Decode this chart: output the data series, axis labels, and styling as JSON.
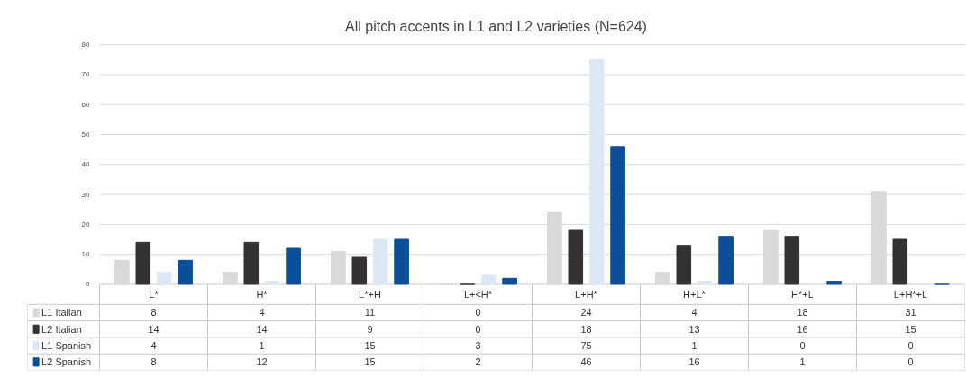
{
  "chart_data": {
    "type": "bar",
    "title": "All pitch accents in L1 and L2 varieties (N=624)",
    "categories": [
      "L*",
      "H*",
      "L*+H",
      "L+<H*",
      "L+H*",
      "H+L*",
      "H*+L",
      "L+H*+L"
    ],
    "series": [
      {
        "name": "L1 Italian",
        "color": "#d9d9d9",
        "values": [
          8,
          4,
          11,
          0,
          24,
          4,
          18,
          31
        ]
      },
      {
        "name": "L2 Italian",
        "color": "#333333",
        "values": [
          14,
          14,
          9,
          0,
          18,
          13,
          16,
          15
        ]
      },
      {
        "name": "L1 Spanish",
        "color": "#dce8f6",
        "values": [
          4,
          1,
          15,
          3,
          75,
          1,
          0,
          0
        ]
      },
      {
        "name": "L2 Spanish",
        "color": "#0b4f9a",
        "values": [
          8,
          12,
          15,
          2,
          46,
          16,
          1,
          0
        ]
      }
    ],
    "ylim": [
      0,
      80
    ],
    "yticks": [
      0,
      10,
      20,
      30,
      40,
      50,
      60,
      70,
      80
    ],
    "grid": "y",
    "legend": "bottom",
    "data_labels": true
  }
}
